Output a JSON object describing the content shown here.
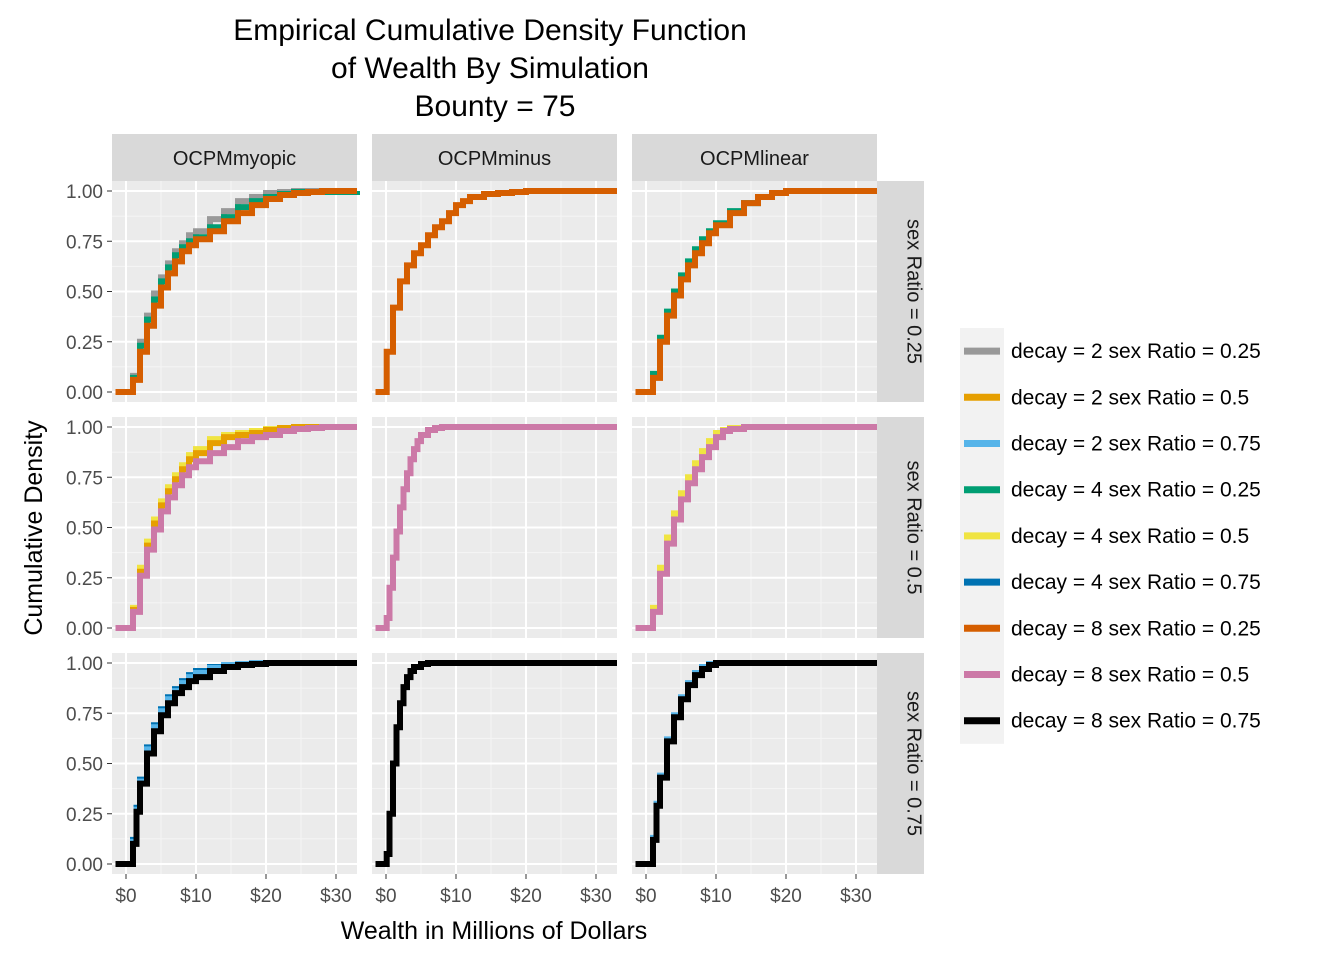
{
  "chart_data": {
    "type": "line",
    "subtype": "ecdf-step",
    "title": [
      "Empirical Cumulative Density Function",
      "of Wealth By Simulation",
      "Bounty = 75"
    ],
    "xlabel": "Wealth in Millions of Dollars",
    "ylabel": "Cumulative Density",
    "xlim": [
      -2,
      33
    ],
    "ylim": [
      0,
      1
    ],
    "x_ticks": [
      0,
      10,
      20,
      30
    ],
    "x_tick_labels": [
      "$0",
      "$10",
      "$20",
      "$30"
    ],
    "y_ticks": [
      0,
      0.25,
      0.5,
      0.75,
      1
    ],
    "y_tick_labels": [
      "0.00",
      "0.25",
      "0.50",
      "0.75",
      "1.00"
    ],
    "grid": true,
    "background": "#ebebeb",
    "strip_background": "#d9d9d9",
    "facet_columns": [
      "OCPMmyopic",
      "OCPMminus",
      "OCPMlinear"
    ],
    "facet_rows": [
      "sex Ratio = 0.25",
      "sex Ratio = 0.5",
      "sex Ratio = 0.75"
    ],
    "legend_position": "right",
    "legend": [
      {
        "label": "decay = 2 sex Ratio = 0.25",
        "color": "#999999"
      },
      {
        "label": "decay = 2 sex Ratio = 0.5",
        "color": "#E69F00"
      },
      {
        "label": "decay = 2 sex Ratio = 0.75",
        "color": "#56B4E9"
      },
      {
        "label": "decay = 4 sex Ratio = 0.25",
        "color": "#009E73"
      },
      {
        "label": "decay = 4 sex Ratio = 0.5",
        "color": "#F0E442"
      },
      {
        "label": "decay = 4 sex Ratio = 0.75",
        "color": "#0072B2"
      },
      {
        "label": "decay = 8 sex Ratio = 0.25",
        "color": "#D55E00"
      },
      {
        "label": "decay = 8 sex Ratio = 0.5",
        "color": "#CC79A7"
      },
      {
        "label": "decay = 8 sex Ratio = 0.75",
        "color": "#000000"
      }
    ],
    "panels": [
      {
        "row": 0,
        "col": 0,
        "series": [
          {
            "name": "decay = 2 sex Ratio = 0.25",
            "x": [
              -1.5,
              0.5,
              1,
              2,
              3,
              4,
              5,
              6,
              7,
              8,
              9,
              10,
              12,
              14,
              16,
              18,
              20,
              22,
              24,
              33
            ],
            "y": [
              0,
              0,
              0.08,
              0.25,
              0.38,
              0.49,
              0.57,
              0.64,
              0.7,
              0.74,
              0.78,
              0.8,
              0.86,
              0.9,
              0.95,
              0.97,
              0.99,
              0.995,
              1,
              1
            ]
          },
          {
            "name": "decay = 4 sex Ratio = 0.25",
            "x": [
              -1.5,
              0.5,
              1,
              2,
              3,
              4,
              5,
              6,
              7,
              8,
              9,
              10,
              12,
              14,
              16,
              18,
              20,
              22,
              24,
              33
            ],
            "y": [
              0,
              0,
              0.07,
              0.23,
              0.36,
              0.46,
              0.55,
              0.62,
              0.68,
              0.72,
              0.75,
              0.77,
              0.82,
              0.87,
              0.92,
              0.95,
              0.97,
              0.985,
              0.995,
              1
            ]
          },
          {
            "name": "decay = 8 sex Ratio = 0.25",
            "x": [
              -1.5,
              0.5,
              1,
              2,
              3,
              4,
              5,
              6,
              7,
              8,
              9,
              10,
              12,
              14,
              16,
              18,
              20,
              22,
              24,
              26,
              28,
              33
            ],
            "y": [
              0,
              0,
              0.06,
              0.2,
              0.33,
              0.43,
              0.52,
              0.59,
              0.65,
              0.7,
              0.73,
              0.76,
              0.8,
              0.85,
              0.89,
              0.93,
              0.96,
              0.98,
              0.99,
              0.995,
              1,
              1
            ]
          }
        ]
      },
      {
        "row": 0,
        "col": 1,
        "series": [
          {
            "name": "decay = 8 sex Ratio = 0.25",
            "x": [
              -1.5,
              0,
              0.1,
              1,
              2,
              3,
              4,
              5,
              6,
              7,
              8,
              9,
              10,
              11,
              12,
              14,
              16,
              18,
              20,
              33
            ],
            "y": [
              0,
              0,
              0.2,
              0.42,
              0.55,
              0.63,
              0.69,
              0.73,
              0.78,
              0.82,
              0.85,
              0.89,
              0.93,
              0.95,
              0.97,
              0.985,
              0.99,
              0.995,
              1,
              1
            ]
          }
        ]
      },
      {
        "row": 0,
        "col": 2,
        "series": [
          {
            "name": "decay = 4 sex Ratio = 0.25",
            "x": [
              -1.5,
              0.5,
              1,
              2,
              3,
              4,
              5,
              6,
              7,
              8,
              9,
              10,
              12,
              14,
              16,
              18,
              20,
              33
            ],
            "y": [
              0,
              0,
              0.09,
              0.27,
              0.4,
              0.5,
              0.58,
              0.65,
              0.71,
              0.76,
              0.8,
              0.84,
              0.9,
              0.94,
              0.97,
              0.99,
              1,
              1
            ]
          },
          {
            "name": "decay = 8 sex Ratio = 0.25",
            "x": [
              -1.5,
              0.5,
              1,
              2,
              3,
              4,
              5,
              6,
              7,
              8,
              9,
              10,
              12,
              14,
              16,
              18,
              20,
              33
            ],
            "y": [
              0,
              0,
              0.07,
              0.25,
              0.38,
              0.48,
              0.56,
              0.63,
              0.69,
              0.74,
              0.79,
              0.83,
              0.89,
              0.94,
              0.97,
              0.99,
              1,
              1
            ]
          }
        ]
      },
      {
        "row": 1,
        "col": 0,
        "series": [
          {
            "name": "decay = 4 sex Ratio = 0.5",
            "x": [
              -1.5,
              0.5,
              1,
              2,
              3,
              4,
              5,
              6,
              7,
              8,
              9,
              10,
              12,
              14,
              16,
              18,
              20,
              22,
              24,
              33
            ],
            "y": [
              0,
              0,
              0.1,
              0.3,
              0.43,
              0.54,
              0.63,
              0.7,
              0.76,
              0.81,
              0.86,
              0.89,
              0.94,
              0.96,
              0.97,
              0.98,
              0.99,
              0.995,
              1,
              1
            ]
          },
          {
            "name": "decay = 2 sex Ratio = 0.5",
            "x": [
              -1.5,
              0.5,
              1,
              2,
              3,
              4,
              5,
              6,
              7,
              8,
              9,
              10,
              12,
              14,
              16,
              18,
              20,
              22,
              24,
              33
            ],
            "y": [
              0,
              0,
              0.09,
              0.28,
              0.41,
              0.52,
              0.61,
              0.68,
              0.74,
              0.79,
              0.84,
              0.87,
              0.92,
              0.95,
              0.96,
              0.97,
              0.985,
              0.995,
              1,
              1
            ]
          },
          {
            "name": "decay = 8 sex Ratio = 0.5",
            "x": [
              -1.5,
              0.5,
              1,
              2,
              3,
              4,
              5,
              6,
              7,
              8,
              9,
              10,
              12,
              14,
              16,
              18,
              20,
              22,
              24,
              26,
              28,
              33
            ],
            "y": [
              0,
              0,
              0.08,
              0.26,
              0.39,
              0.49,
              0.58,
              0.65,
              0.71,
              0.76,
              0.8,
              0.83,
              0.87,
              0.9,
              0.93,
              0.95,
              0.96,
              0.98,
              0.99,
              0.995,
              1,
              1
            ]
          }
        ]
      },
      {
        "row": 1,
        "col": 1,
        "series": [
          {
            "name": "decay = 8 sex Ratio = 0.5",
            "x": [
              -1.5,
              0,
              0.1,
              0.5,
              1,
              1.5,
              2,
              2.5,
              3,
              3.5,
              4,
              4.5,
              5,
              6,
              7,
              8,
              10,
              33
            ],
            "y": [
              0,
              0,
              0.05,
              0.2,
              0.35,
              0.48,
              0.6,
              0.69,
              0.77,
              0.84,
              0.89,
              0.93,
              0.96,
              0.985,
              0.995,
              1,
              1,
              1
            ]
          }
        ]
      },
      {
        "row": 1,
        "col": 2,
        "series": [
          {
            "name": "decay = 4 sex Ratio = 0.5",
            "x": [
              -1.5,
              0.5,
              1,
              2,
              3,
              4,
              5,
              6,
              7,
              8,
              9,
              10,
              11,
              12,
              14,
              33
            ],
            "y": [
              0,
              0,
              0.1,
              0.3,
              0.45,
              0.57,
              0.67,
              0.75,
              0.82,
              0.88,
              0.93,
              0.97,
              0.985,
              0.995,
              1,
              1
            ]
          },
          {
            "name": "decay = 8 sex Ratio = 0.5",
            "x": [
              -1.5,
              0.5,
              1,
              2,
              3,
              4,
              5,
              6,
              7,
              8,
              9,
              10,
              11,
              12,
              14,
              33
            ],
            "y": [
              0,
              0,
              0.08,
              0.27,
              0.42,
              0.54,
              0.64,
              0.72,
              0.79,
              0.85,
              0.9,
              0.95,
              0.98,
              0.99,
              1,
              1
            ]
          }
        ]
      },
      {
        "row": 2,
        "col": 0,
        "series": [
          {
            "name": "decay = 4 sex Ratio = 0.75",
            "x": [
              -1.5,
              0.5,
              1,
              1.5,
              2,
              3,
              4,
              5,
              6,
              7,
              8,
              9,
              10,
              12,
              14,
              16,
              18,
              33
            ],
            "y": [
              0,
              0,
              0.12,
              0.28,
              0.42,
              0.58,
              0.69,
              0.77,
              0.83,
              0.87,
              0.91,
              0.94,
              0.96,
              0.98,
              0.99,
              0.995,
              1,
              1
            ]
          },
          {
            "name": "decay = 2 sex Ratio = 0.75",
            "x": [
              -1.5,
              0.5,
              1,
              1.5,
              2,
              3,
              4,
              5,
              6,
              7,
              8,
              9,
              10,
              12,
              14,
              16,
              18,
              33
            ],
            "y": [
              0,
              0,
              0.11,
              0.27,
              0.41,
              0.57,
              0.68,
              0.76,
              0.82,
              0.86,
              0.9,
              0.93,
              0.95,
              0.975,
              0.99,
              0.995,
              1,
              1
            ]
          },
          {
            "name": "decay = 8 sex Ratio = 0.75",
            "x": [
              -1.5,
              0.5,
              1,
              1.5,
              2,
              3,
              4,
              5,
              6,
              7,
              8,
              9,
              10,
              12,
              14,
              16,
              18,
              20,
              33
            ],
            "y": [
              0,
              0,
              0.1,
              0.26,
              0.4,
              0.55,
              0.66,
              0.74,
              0.8,
              0.85,
              0.88,
              0.91,
              0.93,
              0.96,
              0.98,
              0.99,
              0.995,
              1,
              1
            ]
          }
        ]
      },
      {
        "row": 2,
        "col": 1,
        "series": [
          {
            "name": "decay = 8 sex Ratio = 0.75",
            "x": [
              -1.5,
              0,
              0.1,
              0.5,
              1,
              1.5,
              2,
              2.5,
              3,
              3.5,
              4,
              5,
              6,
              8,
              33
            ],
            "y": [
              0,
              0,
              0.05,
              0.25,
              0.5,
              0.68,
              0.8,
              0.88,
              0.93,
              0.96,
              0.98,
              0.995,
              1,
              1,
              1
            ]
          }
        ]
      },
      {
        "row": 2,
        "col": 2,
        "series": [
          {
            "name": "decay = 2 sex Ratio = 0.75",
            "x": [
              -1.5,
              0.5,
              1,
              1.5,
              2,
              3,
              4,
              5,
              6,
              7,
              8,
              9,
              10,
              33
            ],
            "y": [
              0,
              0,
              0.13,
              0.3,
              0.44,
              0.62,
              0.74,
              0.83,
              0.9,
              0.95,
              0.98,
              0.995,
              1,
              1
            ]
          },
          {
            "name": "decay = 8 sex Ratio = 0.75",
            "x": [
              -1.5,
              0.5,
              1,
              1.5,
              2,
              3,
              4,
              5,
              6,
              7,
              8,
              9,
              10,
              33
            ],
            "y": [
              0,
              0,
              0.12,
              0.29,
              0.43,
              0.61,
              0.73,
              0.82,
              0.89,
              0.94,
              0.97,
              0.99,
              1,
              1
            ]
          }
        ]
      }
    ]
  }
}
